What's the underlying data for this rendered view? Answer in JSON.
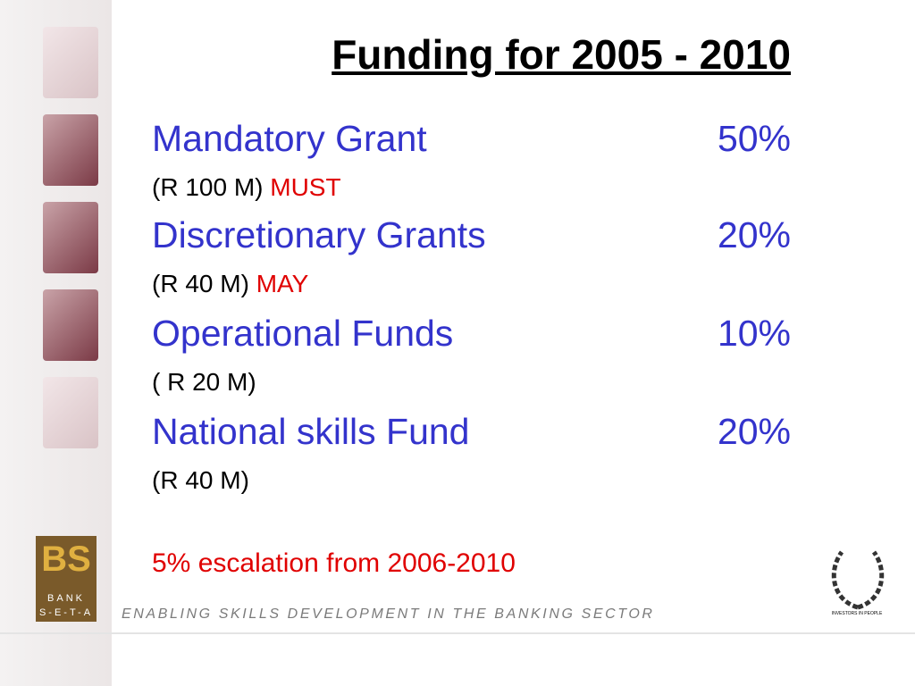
{
  "title": "Funding for 2005 - 2010",
  "items": [
    {
      "name": "Mandatory Grant",
      "percent": "50%",
      "amount": "(R 100 M)",
      "note": "MUST"
    },
    {
      "name": "Discretionary Grants",
      "percent": "20%",
      "amount": "(R 40 M)",
      "note": "MAY"
    },
    {
      "name": "Operational Funds",
      "percent": "10%",
      "amount": "( R 20 M)"
    },
    {
      "name": "National skills Fund",
      "percent": "20%",
      "amount": "(R 40 M)"
    }
  ],
  "escalation": "5% escalation from 2006-2010",
  "footer": {
    "tagline": "ENABLING SKILLS DEVELOPMENT IN THE BANKING SECTOR",
    "logo_mark": "BS",
    "logo_line1": "BANK",
    "logo_line2": "S-E-T-A",
    "badge": "INVESTORS IN PEOPLE"
  }
}
